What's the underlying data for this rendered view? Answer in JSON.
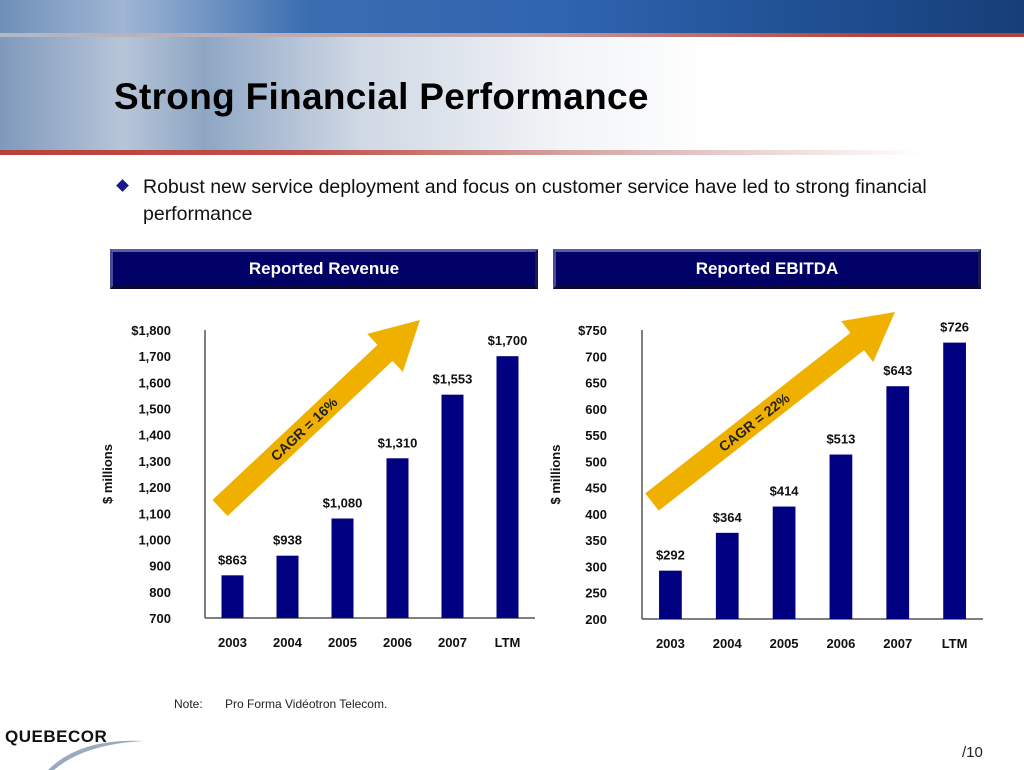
{
  "slide": {
    "title": "Strong Financial Performance",
    "bullet": "Robust new service deployment and focus on customer service have led to strong financial performance",
    "note_label": "Note:",
    "note_text": "Pro Forma Vidéotron Telecom.",
    "logo_text": "QUEBECOR",
    "page_number": "/10",
    "colors": {
      "bar": "#000080",
      "header_bg": "#000066",
      "arrow": "#f0b000",
      "accent_red": "#b8403a"
    }
  },
  "chart_data": [
    {
      "type": "bar",
      "title": "Reported Revenue",
      "xlabel": "",
      "ylabel": "$ millions",
      "categories": [
        "2003",
        "2004",
        "2005",
        "2006",
        "2007",
        "LTM"
      ],
      "values": [
        863,
        938,
        1080,
        1310,
        1553,
        1700
      ],
      "data_labels": [
        "$863",
        "$938",
        "$1,080",
        "$1,310",
        "$1,553",
        "$1,700"
      ],
      "ylim": [
        700,
        1800
      ],
      "yticks": [
        700,
        800,
        900,
        1000,
        1100,
        1200,
        1300,
        1400,
        1500,
        1600,
        1700,
        1800
      ],
      "ytick_labels": [
        "700",
        "800",
        "900",
        "1,000",
        "1,100",
        "1,200",
        "1,300",
        "1,400",
        "1,500",
        "1,600",
        "1,700",
        "$1,800"
      ],
      "annotation": "CAGR = 16%",
      "grid": false,
      "legend": "none"
    },
    {
      "type": "bar",
      "title": "Reported EBITDA",
      "xlabel": "",
      "ylabel": "$ millions",
      "categories": [
        "2003",
        "2004",
        "2005",
        "2006",
        "2007",
        "LTM"
      ],
      "values": [
        292,
        364,
        414,
        513,
        643,
        726
      ],
      "data_labels": [
        "$292",
        "$364",
        "$414",
        "$513",
        "$643",
        "$726"
      ],
      "ylim": [
        200,
        750
      ],
      "yticks": [
        200,
        250,
        300,
        350,
        400,
        450,
        500,
        550,
        600,
        650,
        700,
        750
      ],
      "ytick_labels": [
        "200",
        "250",
        "300",
        "350",
        "400",
        "450",
        "500",
        "550",
        "600",
        "650",
        "700",
        "$750"
      ],
      "annotation": "CAGR = 22%",
      "grid": false,
      "legend": "none"
    }
  ]
}
